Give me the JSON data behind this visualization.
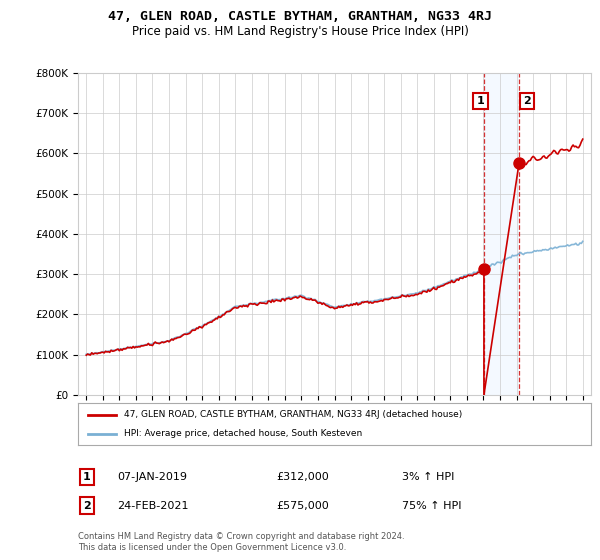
{
  "title": "47, GLEN ROAD, CASTLE BYTHAM, GRANTHAM, NG33 4RJ",
  "subtitle": "Price paid vs. HM Land Registry's House Price Index (HPI)",
  "legend_label1": "47, GLEN ROAD, CASTLE BYTHAM, GRANTHAM, NG33 4RJ (detached house)",
  "legend_label2": "HPI: Average price, detached house, South Kesteven",
  "annotation1_date": "07-JAN-2019",
  "annotation1_price": "£312,000",
  "annotation1_hpi": "3% ↑ HPI",
  "annotation2_date": "24-FEB-2021",
  "annotation2_price": "£575,000",
  "annotation2_hpi": "75% ↑ HPI",
  "copyright": "Contains HM Land Registry data © Crown copyright and database right 2024.\nThis data is licensed under the Open Government Licence v3.0.",
  "line1_color": "#cc0000",
  "line2_color": "#7ab0d4",
  "shaded_color": "#ddeeff",
  "marker_color": "#cc0000",
  "annotation_box_color": "#cc0000",
  "background_color": "#ffffff",
  "grid_color": "#cccccc",
  "ylim": [
    0,
    800000
  ],
  "yticks": [
    0,
    100000,
    200000,
    300000,
    400000,
    500000,
    600000,
    700000,
    800000
  ],
  "sale1_year": 2019.03,
  "sale1_price": 312000,
  "sale2_year": 2021.15,
  "sale2_price": 575000
}
